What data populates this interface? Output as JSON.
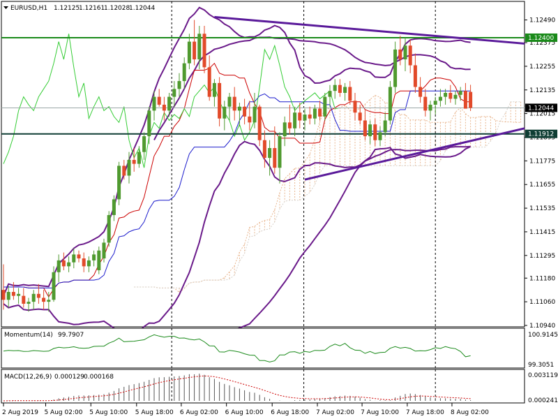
{
  "chart_data": {
    "type": "candlestick",
    "symbol_label": "EURUSD,H1",
    "ohlc_header": [
      "1.12125",
      "1.12161",
      "1.12028",
      "1.12044"
    ],
    "price_axis": {
      "range": [
        1.1094,
        1.1257
      ],
      "ticks": [
        "1.12490",
        "1.12375",
        "1.12255",
        "1.12135",
        "1.12015",
        "1.11895",
        "1.11775",
        "1.11655",
        "1.11535",
        "1.11415",
        "1.11295",
        "1.11180",
        "1.11060",
        "1.10940"
      ]
    },
    "time_labels": [
      "2 Aug 2019",
      "5 Aug 02:00",
      "5 Aug 10:00",
      "5 Aug 18:00",
      "6 Aug 02:00",
      "6 Aug 10:00",
      "6 Aug 18:00",
      "7 Aug 02:00",
      "7 Aug 10:00",
      "7 Aug 18:00",
      "8 Aug 02:00"
    ],
    "current_price": "1.12044",
    "horizontal_levels": [
      {
        "label": "1.12400",
        "value": 1.124,
        "color": "#1a8a1a"
      },
      {
        "label": "1.11912",
        "value": 1.11912,
        "color": "#0e3d33"
      }
    ],
    "trendlines": [
      {
        "from": [
          42,
          1.12505
        ],
        "to": [
          117,
          1.1237
        ]
      },
      {
        "from": [
          60,
          1.1168
        ],
        "to": [
          117,
          1.1194
        ]
      }
    ],
    "candles": [
      [
        1.1112,
        1.1125,
        1.1102,
        1.1107
      ],
      [
        1.1107,
        1.1114,
        1.1103,
        1.1111
      ],
      [
        1.1111,
        1.1116,
        1.1107,
        1.1109
      ],
      [
        1.1109,
        1.1113,
        1.1105,
        1.111
      ],
      [
        1.1109,
        1.1113,
        1.1103,
        1.1105
      ],
      [
        1.1105,
        1.1108,
        1.1101,
        1.1106
      ],
      [
        1.1106,
        1.1112,
        1.1102,
        1.111
      ],
      [
        1.111,
        1.1115,
        1.1105,
        1.1108
      ],
      [
        1.1108,
        1.1112,
        1.1102,
        1.1106
      ],
      [
        1.1106,
        1.1111,
        1.1101,
        1.1107
      ],
      [
        1.1107,
        1.1124,
        1.1106,
        1.1121
      ],
      [
        1.1121,
        1.113,
        1.1116,
        1.1127
      ],
      [
        1.1127,
        1.1131,
        1.1122,
        1.1124
      ],
      [
        1.1124,
        1.1129,
        1.1121,
        1.1126
      ],
      [
        1.1126,
        1.1133,
        1.1123,
        1.113
      ],
      [
        1.113,
        1.1132,
        1.1126,
        1.1128
      ],
      [
        1.1128,
        1.1131,
        1.1121,
        1.1124
      ],
      [
        1.1124,
        1.1129,
        1.1121,
        1.1127
      ],
      [
        1.1127,
        1.1132,
        1.1124,
        1.113
      ],
      [
        1.1122,
        1.1134,
        1.112,
        1.1132
      ],
      [
        1.1128,
        1.1138,
        1.1126,
        1.1136
      ],
      [
        1.1136,
        1.1152,
        1.1134,
        1.115
      ],
      [
        1.115,
        1.116,
        1.1147,
        1.1158
      ],
      [
        1.1158,
        1.1177,
        1.1155,
        1.1175
      ],
      [
        1.1175,
        1.1178,
        1.1168,
        1.117
      ],
      [
        1.117,
        1.1182,
        1.1166,
        1.1178
      ],
      [
        1.1178,
        1.1184,
        1.1172,
        1.1176
      ],
      [
        1.1176,
        1.1185,
        1.1174,
        1.1182
      ],
      [
        1.1182,
        1.1192,
        1.1178,
        1.119
      ],
      [
        1.119,
        1.1205,
        1.1186,
        1.1203
      ],
      [
        1.1203,
        1.1213,
        1.1198,
        1.121
      ],
      [
        1.121,
        1.1214,
        1.1205,
        1.1206
      ],
      [
        1.1206,
        1.121,
        1.1198,
        1.1203
      ],
      [
        1.1203,
        1.1212,
        1.12,
        1.121
      ],
      [
        1.121,
        1.1218,
        1.1205,
        1.1214
      ],
      [
        1.1214,
        1.1222,
        1.121,
        1.1218
      ],
      [
        1.1218,
        1.123,
        1.1214,
        1.1227
      ],
      [
        1.1227,
        1.1242,
        1.1224,
        1.1238
      ],
      [
        1.1238,
        1.1249,
        1.1226,
        1.1229
      ],
      [
        1.1229,
        1.1246,
        1.1224,
        1.1242
      ],
      [
        1.1242,
        1.1246,
        1.1222,
        1.1225
      ],
      [
        1.1225,
        1.1231,
        1.1208,
        1.121
      ],
      [
        1.121,
        1.1219,
        1.1205,
        1.1217
      ],
      [
        1.1217,
        1.122,
        1.1195,
        1.1199
      ],
      [
        1.1199,
        1.1208,
        1.1193,
        1.1205
      ],
      [
        1.1205,
        1.1212,
        1.1198,
        1.121
      ],
      [
        1.121,
        1.1215,
        1.1198,
        1.1203
      ],
      [
        1.1203,
        1.1207,
        1.1195,
        1.1205
      ],
      [
        1.1205,
        1.1209,
        1.1196,
        1.12
      ],
      [
        1.12,
        1.1208,
        1.1193,
        1.1197
      ],
      [
        1.1197,
        1.1212,
        1.1194,
        1.1205
      ],
      [
        1.1205,
        1.1206,
        1.1185,
        1.1188
      ],
      [
        1.1188,
        1.1193,
        1.1174,
        1.1179
      ],
      [
        1.1179,
        1.1188,
        1.117,
        1.1184
      ],
      [
        1.1184,
        1.1195,
        1.1171,
        1.1174
      ],
      [
        1.1174,
        1.1192,
        1.1166,
        1.119
      ],
      [
        1.119,
        1.12,
        1.1185,
        1.1197
      ],
      [
        1.1197,
        1.1206,
        1.1191,
        1.1194
      ],
      [
        1.1194,
        1.1205,
        1.119,
        1.1202
      ],
      [
        1.1202,
        1.1207,
        1.1194,
        1.1198
      ],
      [
        1.1198,
        1.1204,
        1.1193,
        1.1201
      ],
      [
        1.1201,
        1.1205,
        1.1196,
        1.1199
      ],
      [
        1.1199,
        1.1206,
        1.1196,
        1.1204
      ],
      [
        1.1204,
        1.1208,
        1.1198,
        1.12
      ],
      [
        1.12,
        1.1212,
        1.1198,
        1.121
      ],
      [
        1.121,
        1.1216,
        1.1205,
        1.1213
      ],
      [
        1.1213,
        1.1219,
        1.1209,
        1.1216
      ],
      [
        1.1216,
        1.1219,
        1.121,
        1.1212
      ],
      [
        1.1212,
        1.1217,
        1.1208,
        1.1215
      ],
      [
        1.1215,
        1.1218,
        1.1206,
        1.1208
      ],
      [
        1.1208,
        1.1212,
        1.1198,
        1.1202
      ],
      [
        1.1202,
        1.1206,
        1.1196,
        1.1198
      ],
      [
        1.1198,
        1.1203,
        1.1188,
        1.119
      ],
      [
        1.119,
        1.1198,
        1.1186,
        1.1196
      ],
      [
        1.1196,
        1.1199,
        1.1185,
        1.1188
      ],
      [
        1.1188,
        1.1195,
        1.1185,
        1.1192
      ],
      [
        1.1192,
        1.1202,
        1.119,
        1.1198
      ],
      [
        1.1198,
        1.1218,
        1.1196,
        1.1215
      ],
      [
        1.1215,
        1.1238,
        1.1212,
        1.1234
      ],
      [
        1.1234,
        1.1241,
        1.1226,
        1.1229
      ],
      [
        1.1229,
        1.124,
        1.1223,
        1.1236
      ],
      [
        1.1236,
        1.1239,
        1.1222,
        1.1226
      ],
      [
        1.1226,
        1.1232,
        1.1212,
        1.1215
      ],
      [
        1.1215,
        1.122,
        1.1207,
        1.121
      ],
      [
        1.121,
        1.1214,
        1.12,
        1.1203
      ],
      [
        1.1203,
        1.1208,
        1.1198,
        1.1206
      ],
      [
        1.1206,
        1.121,
        1.1201,
        1.1208
      ],
      [
        1.1208,
        1.1214,
        1.1205,
        1.121
      ],
      [
        1.121,
        1.1214,
        1.1206,
        1.1212
      ],
      [
        1.1212,
        1.1216,
        1.1207,
        1.1209
      ],
      [
        1.1209,
        1.1213,
        1.1206,
        1.1211
      ],
      [
        1.1211,
        1.1215,
        1.1208,
        1.1213
      ],
      [
        1.1213,
        1.1217,
        1.1204,
        1.1204
      ],
      [
        1.12125,
        1.12161,
        1.12028,
        1.12044
      ]
    ],
    "indicators": [
      {
        "name": "Momentum(14)",
        "value": "99.7907",
        "axis_ticks": [
          "100.9145",
          "99.3051"
        ],
        "color": "#1a8a1a"
      },
      {
        "name": "MACD(12,26,9)",
        "values": [
          "0.000129",
          "0.000168"
        ],
        "axis_ticks": [
          "0.003119",
          "0.000241"
        ],
        "color": "#cc0000"
      }
    ]
  }
}
